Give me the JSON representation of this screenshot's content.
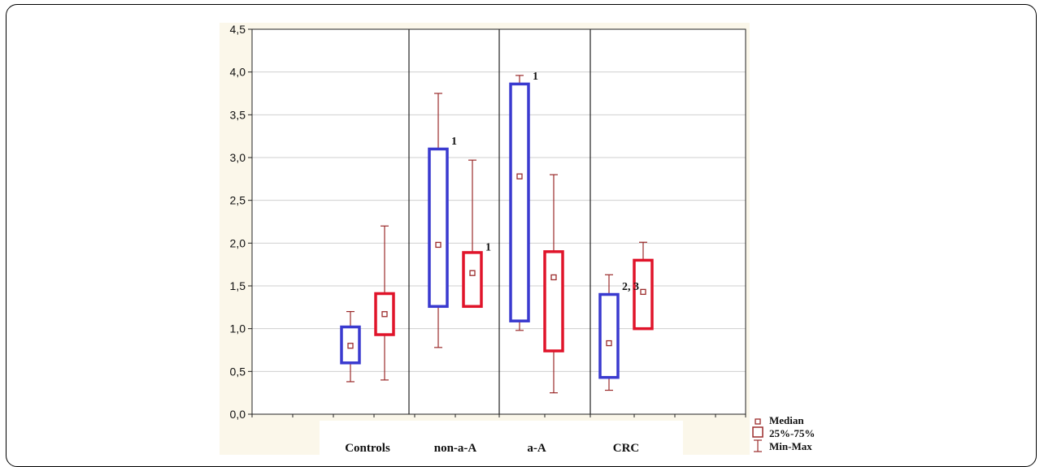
{
  "chart_data": {
    "type": "boxplot",
    "categories": [
      "Controls",
      "non-a-A",
      "a-A",
      "CRC"
    ],
    "ylim": [
      0,
      4.5
    ],
    "y_ticks": [
      "0,0",
      "0,5",
      "1,0",
      "1,5",
      "2,0",
      "2,5",
      "3,0",
      "3,5",
      "4,0",
      "4,5"
    ],
    "grid": true,
    "colors": {
      "blue": "#3a3acf",
      "red": "#e0142a",
      "whisker": "#9b2b2b",
      "median": "#9b2b2b"
    },
    "series": [
      {
        "color": "blue",
        "boxes": [
          {
            "category": "Controls",
            "min": 0.38,
            "q1": 0.6,
            "median": 0.8,
            "q3": 1.02,
            "max": 1.2
          },
          {
            "category": "non-a-A",
            "min": 0.78,
            "q1": 1.26,
            "median": 1.98,
            "q3": 3.1,
            "max": 3.75
          },
          {
            "category": "a-A",
            "min": 0.98,
            "q1": 1.09,
            "median": 2.78,
            "q3": 3.86,
            "max": 3.96
          },
          {
            "category": "CRC",
            "min": 0.28,
            "q1": 0.43,
            "median": 0.83,
            "q3": 1.4,
            "max": 1.63
          }
        ]
      },
      {
        "color": "red",
        "boxes": [
          {
            "category": "Controls",
            "min": 0.4,
            "q1": 0.93,
            "median": 1.17,
            "q3": 1.41,
            "max": 2.2
          },
          {
            "category": "non-a-A",
            "min": 1.26,
            "q1": 1.26,
            "median": 1.65,
            "q3": 1.89,
            "max": 2.97
          },
          {
            "category": "a-A",
            "min": 0.25,
            "q1": 0.74,
            "median": 1.6,
            "q3": 1.9,
            "max": 2.8
          },
          {
            "category": "CRC",
            "min": 1.0,
            "q1": 1.0,
            "median": 1.43,
            "q3": 1.8,
            "max": 2.01
          }
        ]
      }
    ],
    "annotations": [
      {
        "text": "1",
        "category": "non-a-A",
        "series": 0,
        "y": 3.2
      },
      {
        "text": "1",
        "category": "non-a-A",
        "series": 1,
        "y": 1.96
      },
      {
        "text": "1",
        "category": "a-A",
        "series": 0,
        "y": 3.96
      },
      {
        "text": "2, 3",
        "category": "CRC",
        "series": 0,
        "y": 1.5
      }
    ],
    "legend": {
      "position": "bottom-right",
      "entries": [
        {
          "symbol": "median",
          "label": "Median"
        },
        {
          "symbol": "box",
          "label": "25%-75%"
        },
        {
          "symbol": "whisker",
          "label": "Min-Max"
        }
      ]
    }
  }
}
